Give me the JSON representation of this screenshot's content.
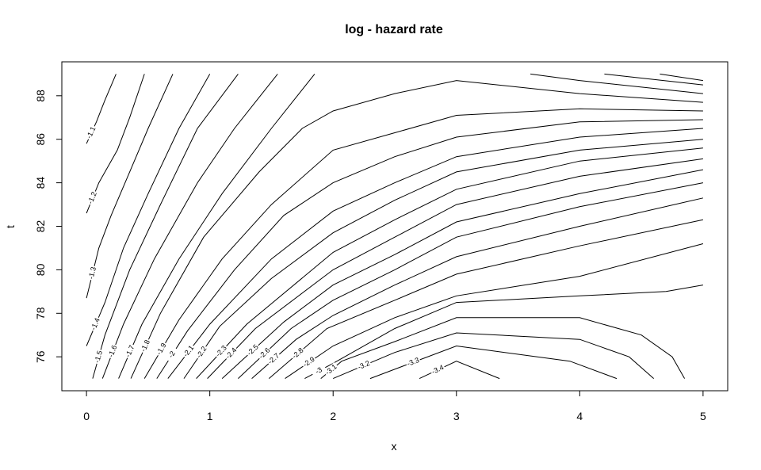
{
  "chart_data": {
    "type": "contour",
    "title": "log - hazard rate",
    "x_label": "x",
    "y_label": "t",
    "xlim": [
      -0.2,
      5.2
    ],
    "ylim": [
      74.44,
      89.56
    ],
    "xticks": [
      0,
      1,
      2,
      3,
      4,
      5
    ],
    "yticks": [
      76,
      78,
      80,
      82,
      84,
      86,
      88
    ],
    "color": "#000000",
    "series": [
      {
        "level": -1.1,
        "x": [
          0,
          0.08,
          0.15,
          0.24
        ],
        "y": [
          85.8,
          86.8,
          87.8,
          89
        ]
      },
      {
        "level": -1.2,
        "x": [
          0,
          0.1,
          0.25,
          0.35,
          0.47
        ],
        "y": [
          82.6,
          84,
          85.5,
          87,
          89
        ]
      },
      {
        "level": -1.3,
        "x": [
          0,
          0.1,
          0.2,
          0.35,
          0.5,
          0.7
        ],
        "y": [
          78.7,
          81,
          82.5,
          84.5,
          86.5,
          89
        ]
      },
      {
        "level": -1.4,
        "x": [
          0,
          0.15,
          0.3,
          0.5,
          0.75,
          1.0
        ],
        "y": [
          76.5,
          78.5,
          81,
          83.5,
          86.5,
          89
        ]
      },
      {
        "level": -1.5,
        "x": [
          0.05,
          0.15,
          0.35,
          0.6,
          0.9,
          1.23,
          null,
          4.65,
          5
        ],
        "y": [
          75,
          77,
          80,
          83,
          86.5,
          89,
          null,
          89,
          88.7
        ]
      },
      {
        "level": -1.6,
        "x": [
          0.13,
          0.3,
          0.55,
          0.9,
          1.2,
          1.55,
          null,
          4.2,
          5
        ],
        "y": [
          75,
          77.5,
          80.5,
          84,
          86.5,
          89,
          null,
          89,
          88.5
        ]
      },
      {
        "level": -1.7,
        "x": [
          0.26,
          0.45,
          0.75,
          1.1,
          1.5,
          1.85,
          null,
          3.6,
          4,
          5
        ],
        "y": [
          75,
          77.5,
          80.5,
          83.5,
          86.5,
          89,
          null,
          89,
          88.7,
          88.1
        ]
      },
      {
        "level": -1.8,
        "x": [
          0.36,
          0.6,
          0.95,
          1.4,
          1.75,
          2,
          2.5,
          3,
          4,
          5
        ],
        "y": [
          75,
          78,
          81.5,
          84.5,
          86.5,
          87.3,
          88.1,
          88.7,
          88.1,
          87.7
        ]
      },
      {
        "level": -1.9,
        "x": [
          0.47,
          0.75,
          1.1,
          1.5,
          2,
          2.5,
          3,
          4,
          5
        ],
        "y": [
          75,
          77.7,
          80.5,
          83,
          85.5,
          86.3,
          87.1,
          87.4,
          87.3
        ]
      },
      {
        "level": -2,
        "x": [
          0.57,
          0.82,
          1.2,
          1.6,
          2,
          2.5,
          3,
          4,
          5
        ],
        "y": [
          75,
          77.2,
          80,
          82.5,
          84,
          85.2,
          86.1,
          86.8,
          86.9
        ]
      },
      {
        "level": -2.1,
        "x": [
          0.66,
          1,
          1.5,
          2,
          2.5,
          3,
          4,
          5
        ],
        "y": [
          75,
          77.5,
          80.5,
          82.7,
          84,
          85.2,
          86.1,
          86.5
        ]
      },
      {
        "level": -2.2,
        "x": [
          0.79,
          1.08,
          1.5,
          2,
          2.5,
          3,
          4,
          5
        ],
        "y": [
          75,
          77.4,
          79.6,
          81.7,
          83.2,
          84.5,
          85.5,
          86
        ]
      },
      {
        "level": -2.3,
        "x": [
          0.89,
          1.3,
          2,
          2.5,
          3,
          4,
          5
        ],
        "y": [
          75,
          77.5,
          80.8,
          82.3,
          83.7,
          85,
          85.6
        ]
      },
      {
        "level": -2.4,
        "x": [
          0.98,
          1.37,
          2,
          2.5,
          3,
          4,
          5
        ],
        "y": [
          75,
          77.3,
          80,
          81.5,
          83,
          84.3,
          85.1
        ]
      },
      {
        "level": -2.5,
        "x": [
          1.1,
          1.6,
          2,
          2.5,
          3,
          4,
          5
        ],
        "y": [
          75,
          77.6,
          79.3,
          80.7,
          82.2,
          83.5,
          84.6
        ]
      },
      {
        "level": -2.6,
        "x": [
          1.23,
          1.66,
          2,
          2.5,
          3,
          4,
          5
        ],
        "y": [
          75,
          77.3,
          78.6,
          80,
          81.5,
          82.9,
          84
        ]
      },
      {
        "level": -2.7,
        "x": [
          1.34,
          1.7,
          2,
          2.5,
          3,
          4,
          5
        ],
        "y": [
          75,
          76.8,
          77.9,
          79.3,
          80.6,
          82,
          83.3
        ]
      },
      {
        "level": -2.8,
        "x": [
          1.48,
          1.95,
          2.5,
          3,
          4,
          5
        ],
        "y": [
          75,
          77.3,
          78.6,
          79.8,
          81.1,
          82.3
        ]
      },
      {
        "level": -2.9,
        "x": [
          1.61,
          2,
          2.5,
          3,
          4,
          5
        ],
        "y": [
          75,
          76.5,
          77.8,
          78.8,
          79.7,
          81.2
        ]
      },
      {
        "level": -3,
        "x": [
          1.77,
          2,
          2.5,
          3,
          4,
          4.7,
          5
        ],
        "y": [
          75,
          75.7,
          77.3,
          78.5,
          78.8,
          79,
          79.3
        ]
      },
      {
        "level": -3.1,
        "x": [
          1.9,
          2.07,
          2.5,
          3,
          4,
          4.5,
          4.75,
          4.85
        ],
        "y": [
          75,
          75.8,
          76.7,
          77.8,
          77.8,
          77,
          76,
          75
        ]
      },
      {
        "level": -3.2,
        "x": [
          2,
          2.5,
          3,
          4,
          4.4,
          4.6
        ],
        "y": [
          75,
          76.2,
          77.1,
          76.8,
          76,
          75
        ]
      },
      {
        "level": -3.3,
        "x": [
          2.3,
          3,
          3.92,
          4.3
        ],
        "y": [
          75,
          76.5,
          75.8,
          75
        ]
      },
      {
        "level": -3.4,
        "x": [
          2.7,
          3,
          3.35
        ],
        "y": [
          75,
          75.8,
          75
        ]
      }
    ]
  }
}
